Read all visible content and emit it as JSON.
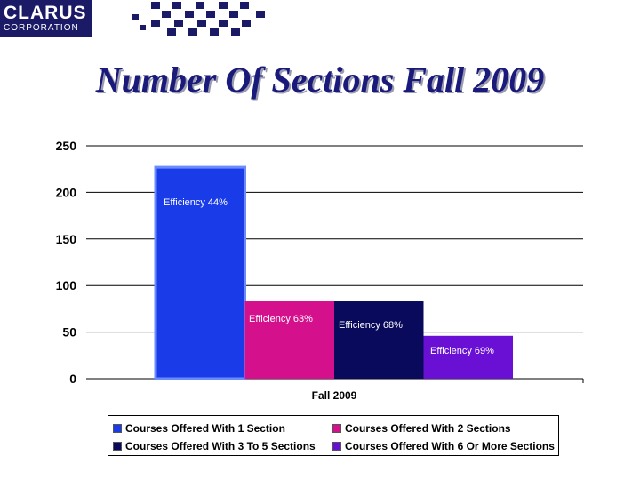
{
  "logo": {
    "name": "CLARUS",
    "subtitle": "CORPORATION",
    "bar_color": "#1a1a66"
  },
  "slide": {
    "title": "Number Of Sections Fall 2009"
  },
  "chart_data": {
    "type": "bar",
    "title": "Number Of Sections Fall 2009",
    "categories": [
      "Fall 2009"
    ],
    "xlabel": "Fall 2009",
    "ylabel": "",
    "ylim": [
      0,
      250
    ],
    "yticks": [
      "0",
      "50",
      "100",
      "150",
      "200",
      "250"
    ],
    "grid": true,
    "legend_position": "bottom",
    "series": [
      {
        "name": "Courses Offered With 1 Section",
        "values": [
          227
        ],
        "color": "#1a3be8",
        "label": "Efficiency 44%"
      },
      {
        "name": "Courses Offered With 2 Sections",
        "values": [
          83
        ],
        "color": "#d4108c",
        "label": "Efficiency 63%"
      },
      {
        "name": "Courses Offered With 3 To 5 Sections",
        "values": [
          83
        ],
        "color": "#0a0a5c",
        "label": "Efficiency 68%"
      },
      {
        "name": "Courses Offered With 6 Or More Sections",
        "values": [
          46
        ],
        "color": "#6a10d4",
        "label": "Efficiency 69%"
      }
    ]
  }
}
